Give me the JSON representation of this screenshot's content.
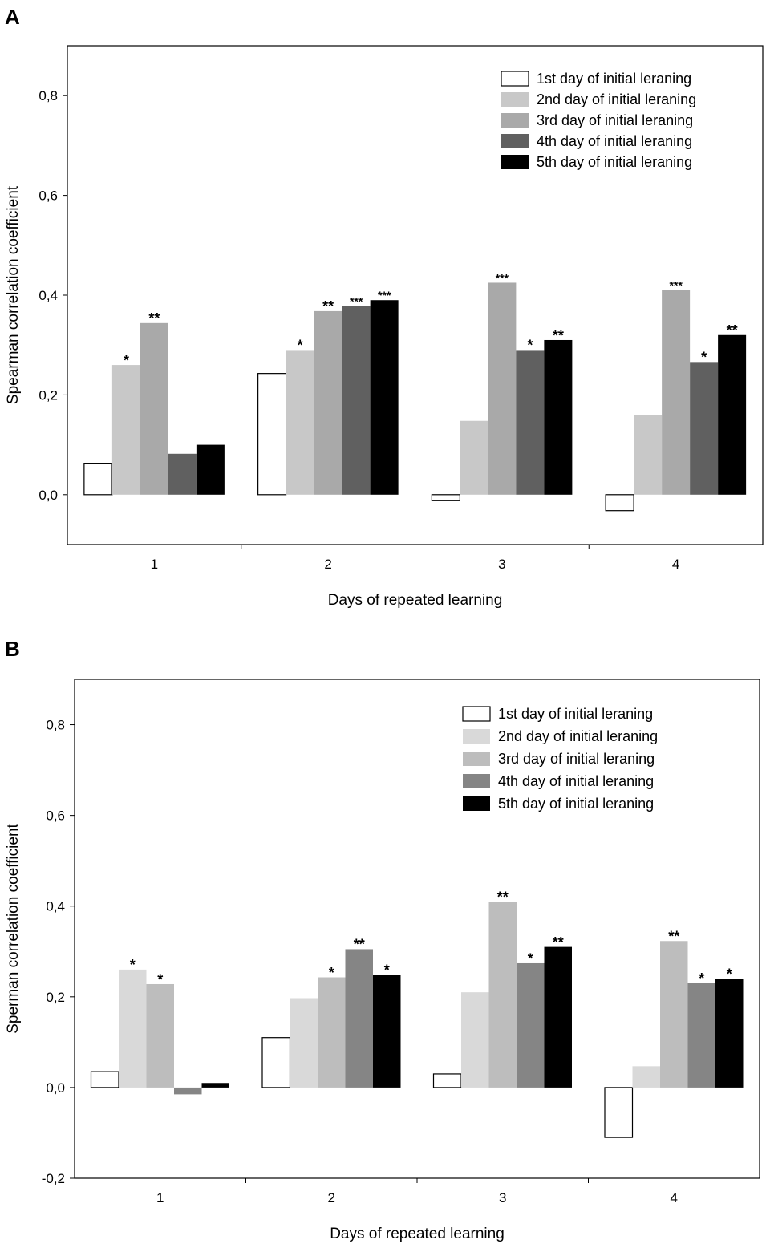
{
  "panels": [
    {
      "label": "A"
    },
    {
      "label": "B"
    }
  ],
  "chart_data": [
    {
      "type": "bar",
      "title": "",
      "xlabel": "Days of repeated learning",
      "ylabel": "Spearman correlation coefficient",
      "categories": [
        "1",
        "2",
        "3",
        "4"
      ],
      "ylim": [
        -0.1,
        0.9
      ],
      "yticks": [
        0.0,
        0.2,
        0.4,
        0.6,
        0.8
      ],
      "ytick_labels": [
        "0,0",
        "0,2",
        "0,4",
        "0,6",
        "0,8"
      ],
      "legend_position": "top-right",
      "series": [
        {
          "name": "1st day of initial leraning",
          "color": "#ffffff",
          "values": [
            0.063,
            0.243,
            -0.012,
            -0.032
          ],
          "sig": [
            "",
            "",
            "",
            ""
          ]
        },
        {
          "name": "2nd day of initial leraning",
          "color": "#c8c8c8",
          "values": [
            0.26,
            0.29,
            0.148,
            0.16
          ],
          "sig": [
            "*",
            "*",
            "",
            ""
          ]
        },
        {
          "name": "3rd day of initial leraning",
          "color": "#a9a9a9",
          "values": [
            0.344,
            0.368,
            0.425,
            0.41
          ],
          "sig": [
            "**",
            "**",
            "***",
            "***"
          ]
        },
        {
          "name": "4th day of initial leraning",
          "color": "#606060",
          "values": [
            0.082,
            0.378,
            0.29,
            0.266
          ],
          "sig": [
            "",
            "***",
            "*",
            "*"
          ]
        },
        {
          "name": "5th day of initial leraning",
          "color": "#000000",
          "values": [
            0.1,
            0.39,
            0.31,
            0.32
          ],
          "sig": [
            "",
            "***",
            "**",
            "**"
          ]
        }
      ]
    },
    {
      "type": "bar",
      "title": "",
      "xlabel": "Days of repeated learning",
      "ylabel": "Sperman correlation coefficient",
      "categories": [
        "1",
        "2",
        "3",
        "4"
      ],
      "ylim": [
        -0.2,
        0.9
      ],
      "yticks": [
        -0.2,
        0.0,
        0.2,
        0.4,
        0.6,
        0.8
      ],
      "ytick_labels": [
        "-0,2",
        "0,0",
        "0,2",
        "0,4",
        "0,6",
        "0,8"
      ],
      "legend_position": "top-right",
      "series": [
        {
          "name": "1st day of initial leraning",
          "color": "#ffffff",
          "values": [
            0.035,
            0.11,
            0.03,
            -0.11
          ],
          "sig": [
            "",
            "",
            "",
            ""
          ]
        },
        {
          "name": "2nd day of initial leraning",
          "color": "#d9d9d9",
          "values": [
            0.26,
            0.197,
            0.21,
            0.047
          ],
          "sig": [
            "*",
            "",
            "",
            ""
          ]
        },
        {
          "name": "3rd day of initial leraning",
          "color": "#bdbdbd",
          "values": [
            0.228,
            0.243,
            0.41,
            0.323
          ],
          "sig": [
            "*",
            "*",
            "**",
            "**"
          ]
        },
        {
          "name": "4th day of initial leraning",
          "color": "#858585",
          "values": [
            -0.015,
            0.305,
            0.274,
            0.23
          ],
          "sig": [
            "",
            "**",
            "*",
            "*"
          ]
        },
        {
          "name": "5th day of initial leraning",
          "color": "#000000",
          "values": [
            0.01,
            0.249,
            0.31,
            0.24
          ],
          "sig": [
            "",
            "*",
            "**",
            "*"
          ]
        }
      ]
    }
  ]
}
